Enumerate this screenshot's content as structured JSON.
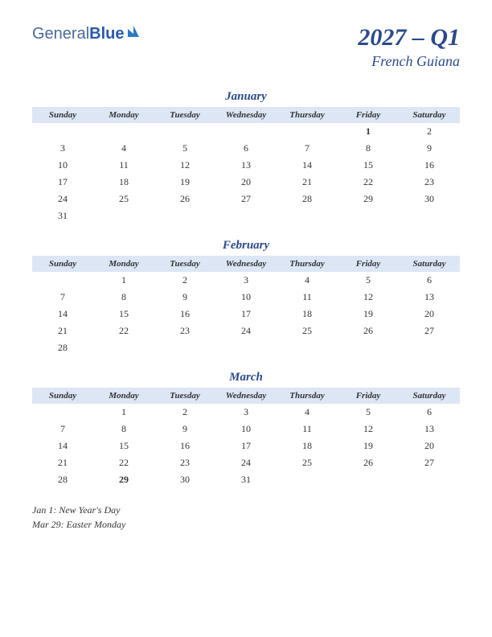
{
  "logo": {
    "part1": "General",
    "part2": "Blue"
  },
  "title": "2027 – Q1",
  "subtitle": "French Guiana",
  "day_headers": [
    "Sunday",
    "Monday",
    "Tuesday",
    "Wednesday",
    "Thursday",
    "Friday",
    "Saturday"
  ],
  "months": [
    {
      "name": "January",
      "weeks": [
        [
          "",
          "",
          "",
          "",
          "",
          "1",
          "2"
        ],
        [
          "3",
          "4",
          "5",
          "6",
          "7",
          "8",
          "9"
        ],
        [
          "10",
          "11",
          "12",
          "13",
          "14",
          "15",
          "16"
        ],
        [
          "17",
          "18",
          "19",
          "20",
          "21",
          "22",
          "23"
        ],
        [
          "24",
          "25",
          "26",
          "27",
          "28",
          "29",
          "30"
        ],
        [
          "31",
          "",
          "",
          "",
          "",
          "",
          ""
        ]
      ],
      "holidays": [
        "1"
      ]
    },
    {
      "name": "February",
      "weeks": [
        [
          "",
          "1",
          "2",
          "3",
          "4",
          "5",
          "6"
        ],
        [
          "7",
          "8",
          "9",
          "10",
          "11",
          "12",
          "13"
        ],
        [
          "14",
          "15",
          "16",
          "17",
          "18",
          "19",
          "20"
        ],
        [
          "21",
          "22",
          "23",
          "24",
          "25",
          "26",
          "27"
        ],
        [
          "28",
          "",
          "",
          "",
          "",
          "",
          ""
        ]
      ],
      "holidays": []
    },
    {
      "name": "March",
      "weeks": [
        [
          "",
          "1",
          "2",
          "3",
          "4",
          "5",
          "6"
        ],
        [
          "7",
          "8",
          "9",
          "10",
          "11",
          "12",
          "13"
        ],
        [
          "14",
          "15",
          "16",
          "17",
          "18",
          "19",
          "20"
        ],
        [
          "21",
          "22",
          "23",
          "24",
          "25",
          "26",
          "27"
        ],
        [
          "28",
          "29",
          "30",
          "31",
          "",
          "",
          ""
        ]
      ],
      "holidays": [
        "29"
      ]
    }
  ],
  "holiday_notes": [
    "Jan 1: New Year's Day",
    "Mar 29: Easter Monday"
  ],
  "colors": {
    "header_bg": "#dce6f5",
    "title_color": "#2a4a8a",
    "holiday_color": "#b00000",
    "text_color": "#333333",
    "background": "#ffffff"
  }
}
